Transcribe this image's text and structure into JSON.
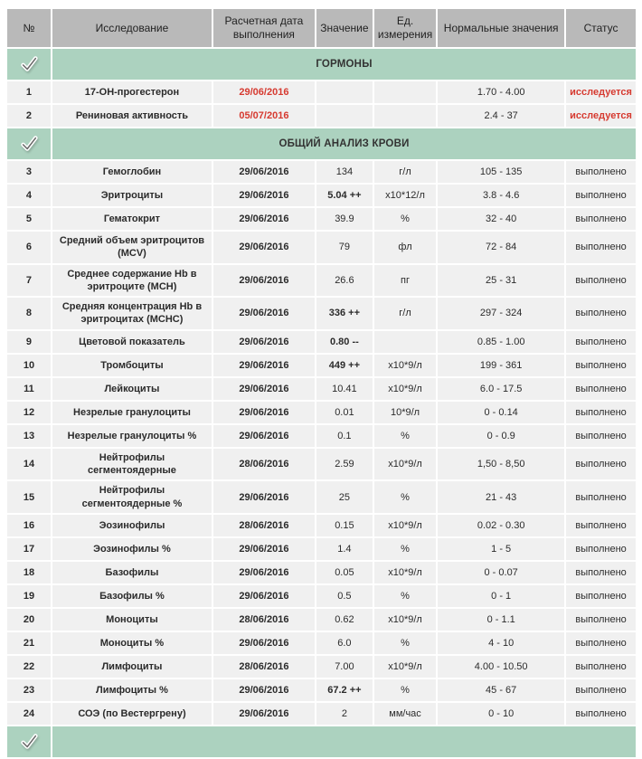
{
  "colors": {
    "header_bg": "#b9b9b9",
    "section_bg": "#acd2bf",
    "row_bg": "#f0f0f0",
    "alert_red": "#d63a30"
  },
  "icons": {
    "section_check": "checkmark-icon"
  },
  "table": {
    "columns": [
      {
        "label": "№"
      },
      {
        "label": "Исследование"
      },
      {
        "label": "Расчетная дата выполнения"
      },
      {
        "label": "Значение"
      },
      {
        "label": "Ед. измерения"
      },
      {
        "label": "Нормальные значения"
      },
      {
        "label": "Статус"
      }
    ],
    "sections": [
      {
        "title": "ГОРМОНЫ",
        "rows": [
          {
            "num": "1",
            "name": "17-ОН-прогестерон",
            "date": "29/06/2016",
            "value": "",
            "unit": "",
            "normal": "1.70 - 4.00",
            "status": "исследуется",
            "alert": true,
            "value_bold": false
          },
          {
            "num": "2",
            "name": "Рениновая активность",
            "date": "05/07/2016",
            "value": "",
            "unit": "",
            "normal": "2.4 - 37",
            "status": "исследуется",
            "alert": true,
            "value_bold": false
          }
        ]
      },
      {
        "title": "ОБЩИЙ АНАЛИЗ КРОВИ",
        "rows": [
          {
            "num": "3",
            "name": "Гемоглобин",
            "date": "29/06/2016",
            "value": "134",
            "unit": "г/л",
            "normal": "105 - 135",
            "status": "выполнено",
            "alert": false,
            "value_bold": false
          },
          {
            "num": "4",
            "name": "Эритроциты",
            "date": "29/06/2016",
            "value": "5.04 ++",
            "unit": "x10*12/л",
            "normal": "3.8 - 4.6",
            "status": "выполнено",
            "alert": false,
            "value_bold": true
          },
          {
            "num": "5",
            "name": "Гематокрит",
            "date": "29/06/2016",
            "value": "39.9",
            "unit": "%",
            "normal": "32 - 40",
            "status": "выполнено",
            "alert": false,
            "value_bold": false
          },
          {
            "num": "6",
            "name": "Средний объем эритроцитов (MCV)",
            "date": "29/06/2016",
            "value": "79",
            "unit": "фл",
            "normal": "72 - 84",
            "status": "выполнено",
            "alert": false,
            "value_bold": false
          },
          {
            "num": "7",
            "name": "Среднее содержание Hb в эритроците (MCH)",
            "date": "29/06/2016",
            "value": "26.6",
            "unit": "пг",
            "normal": "25 - 31",
            "status": "выполнено",
            "alert": false,
            "value_bold": false
          },
          {
            "num": "8",
            "name": "Средняя концентрация Hb в эритроцитах (MCHC)",
            "date": "29/06/2016",
            "value": "336 ++",
            "unit": "г/л",
            "normal": "297 - 324",
            "status": "выполнено",
            "alert": false,
            "value_bold": true
          },
          {
            "num": "9",
            "name": "Цветовой показатель",
            "date": "29/06/2016",
            "value": "0.80 --",
            "unit": "",
            "normal": "0.85 - 1.00",
            "status": "выполнено",
            "alert": false,
            "value_bold": true
          },
          {
            "num": "10",
            "name": "Тромбоциты",
            "date": "29/06/2016",
            "value": "449 ++",
            "unit": "x10*9/л",
            "normal": "199 - 361",
            "status": "выполнено",
            "alert": false,
            "value_bold": true
          },
          {
            "num": "11",
            "name": "Лейкоциты",
            "date": "29/06/2016",
            "value": "10.41",
            "unit": "x10*9/л",
            "normal": "6.0 - 17.5",
            "status": "выполнено",
            "alert": false,
            "value_bold": false
          },
          {
            "num": "12",
            "name": "Незрелые гранулоциты",
            "date": "29/06/2016",
            "value": "0.01",
            "unit": "10*9/л",
            "normal": "0 - 0.14",
            "status": "выполнено",
            "alert": false,
            "value_bold": false
          },
          {
            "num": "13",
            "name": "Незрелые гранулоциты %",
            "date": "29/06/2016",
            "value": "0.1",
            "unit": "%",
            "normal": "0 - 0.9",
            "status": "выполнено",
            "alert": false,
            "value_bold": false
          },
          {
            "num": "14",
            "name": "Нейтрофилы сегментоядерные",
            "date": "28/06/2016",
            "value": "2.59",
            "unit": "x10*9/л",
            "normal": "1,50 - 8,50",
            "status": "выполнено",
            "alert": false,
            "value_bold": false
          },
          {
            "num": "15",
            "name": "Нейтрофилы сегментоядерные %",
            "date": "29/06/2016",
            "value": "25",
            "unit": "%",
            "normal": "21 - 43",
            "status": "выполнено",
            "alert": false,
            "value_bold": false
          },
          {
            "num": "16",
            "name": "Эозинофилы",
            "date": "28/06/2016",
            "value": "0.15",
            "unit": "x10*9/л",
            "normal": "0.02 - 0.30",
            "status": "выполнено",
            "alert": false,
            "value_bold": false
          },
          {
            "num": "17",
            "name": "Эозинофилы %",
            "date": "29/06/2016",
            "value": "1.4",
            "unit": "%",
            "normal": "1 - 5",
            "status": "выполнено",
            "alert": false,
            "value_bold": false
          },
          {
            "num": "18",
            "name": "Базофилы",
            "date": "29/06/2016",
            "value": "0.05",
            "unit": "x10*9/л",
            "normal": "0 - 0.07",
            "status": "выполнено",
            "alert": false,
            "value_bold": false
          },
          {
            "num": "19",
            "name": "Базофилы %",
            "date": "29/06/2016",
            "value": "0.5",
            "unit": "%",
            "normal": "0 - 1",
            "status": "выполнено",
            "alert": false,
            "value_bold": false
          },
          {
            "num": "20",
            "name": "Моноциты",
            "date": "28/06/2016",
            "value": "0.62",
            "unit": "x10*9/л",
            "normal": "0 - 1.1",
            "status": "выполнено",
            "alert": false,
            "value_bold": false
          },
          {
            "num": "21",
            "name": "Моноциты %",
            "date": "29/06/2016",
            "value": "6.0",
            "unit": "%",
            "normal": "4 - 10",
            "status": "выполнено",
            "alert": false,
            "value_bold": false
          },
          {
            "num": "22",
            "name": "Лимфоциты",
            "date": "28/06/2016",
            "value": "7.00",
            "unit": "x10*9/л",
            "normal": "4.00 - 10.50",
            "status": "выполнено",
            "alert": false,
            "value_bold": false
          },
          {
            "num": "23",
            "name": "Лимфоциты %",
            "date": "29/06/2016",
            "value": "67.2 ++",
            "unit": "%",
            "normal": "45 - 67",
            "status": "выполнено",
            "alert": false,
            "value_bold": true
          },
          {
            "num": "24",
            "name": "СОЭ (по Вестергрену)",
            "date": "29/06/2016",
            "value": "2",
            "unit": "мм/час",
            "normal": "0 - 10",
            "status": "выполнено",
            "alert": false,
            "value_bold": false
          }
        ]
      },
      {
        "title": "",
        "rows": [],
        "partial": true
      }
    ]
  }
}
